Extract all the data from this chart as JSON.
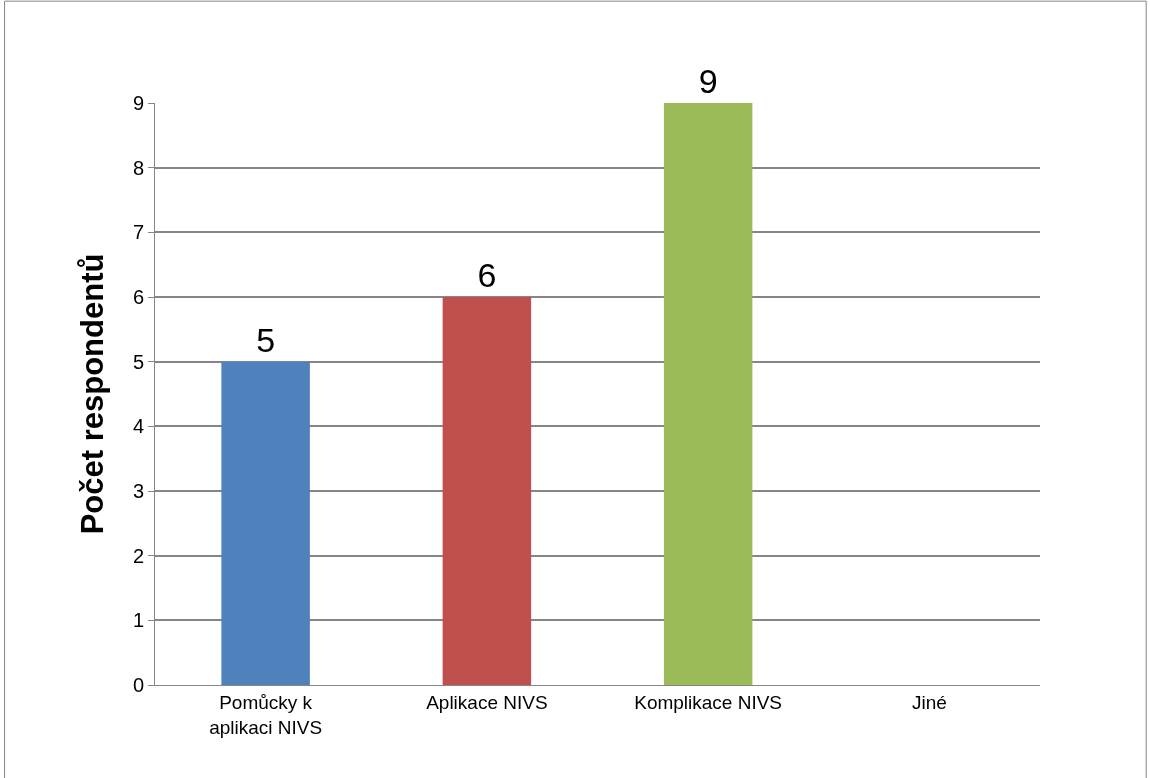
{
  "chart_data": {
    "type": "bar",
    "ylabel": "Počet respondentů",
    "categories": [
      "Pomůcky k aplikaci NIVS",
      "Aplikace NIVS",
      "Komplikace NIVS",
      "Jiné"
    ],
    "values": [
      5,
      6,
      9,
      0
    ],
    "value_labels": [
      "5",
      "6",
      "9",
      null
    ],
    "colors": [
      "#4f81bd",
      "#c0504d",
      "#9bbb59",
      "#8064a2"
    ],
    "ylim": [
      0,
      9
    ],
    "yticks": [
      0,
      1,
      2,
      3,
      4,
      5,
      6,
      7,
      8,
      9
    ],
    "grid": "y"
  }
}
